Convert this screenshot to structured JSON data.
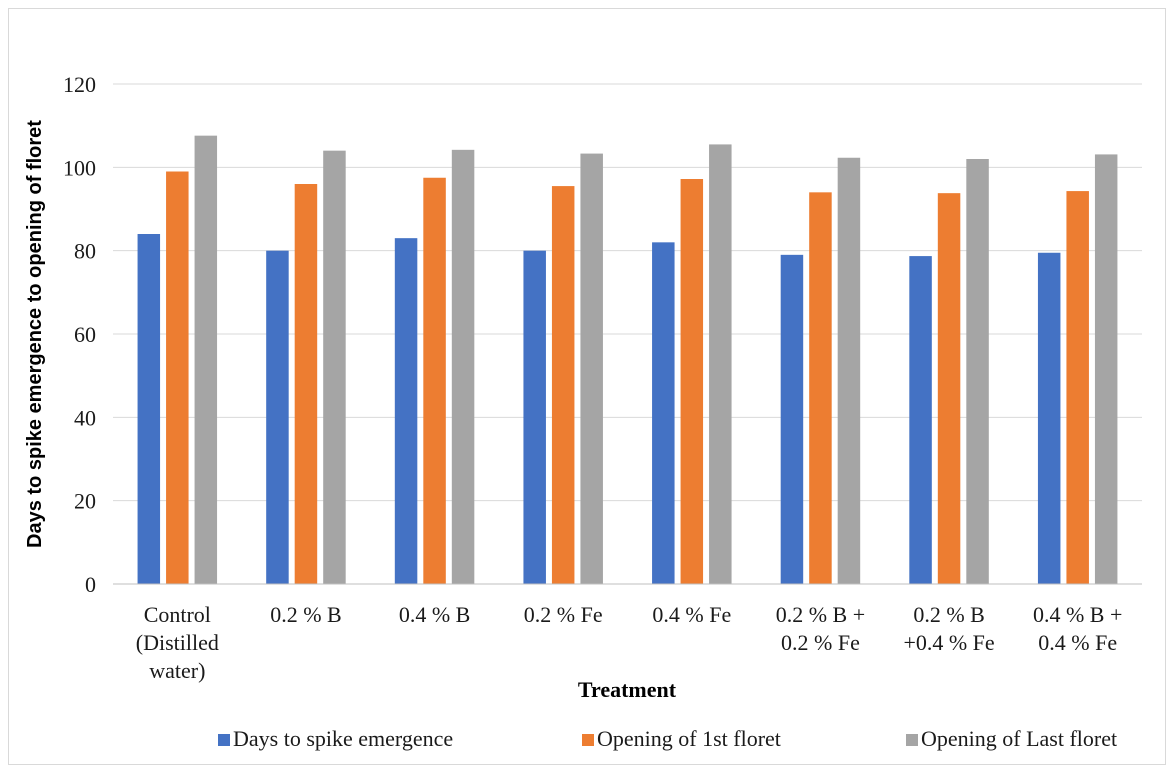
{
  "chart_data": {
    "type": "bar",
    "title": "",
    "xlabel": "Treatment",
    "ylabel": "Days to spike emergence to opening of floret",
    "ylim": [
      0,
      120
    ],
    "yticks": [
      0,
      20,
      40,
      60,
      80,
      100,
      120
    ],
    "grid": true,
    "legend_position": "bottom",
    "categories": [
      [
        "Control",
        "(Distilled",
        "water)"
      ],
      [
        "0.2 % B"
      ],
      [
        "0.4 % B"
      ],
      [
        "0.2 % Fe"
      ],
      [
        "0.4 % Fe"
      ],
      [
        "0.2 % B +",
        "0.2 % Fe"
      ],
      [
        "0.2 % B",
        "+0.4 % Fe"
      ],
      [
        "0.4 % B +",
        "0.4 % Fe"
      ]
    ],
    "series": [
      {
        "name": "Days to spike emergence",
        "color": "#4472c4",
        "values": [
          84,
          80,
          83,
          80,
          82,
          79,
          78.7,
          79.5
        ]
      },
      {
        "name": "Opening of 1st floret",
        "color": "#ed7d31",
        "values": [
          99,
          96,
          97.5,
          95.5,
          97.2,
          94,
          93.8,
          94.3
        ]
      },
      {
        "name": "Opening of Last floret",
        "color": "#a5a5a5",
        "values": [
          107.6,
          104,
          104.2,
          103.3,
          105.5,
          102.3,
          102,
          103.1
        ]
      }
    ]
  }
}
